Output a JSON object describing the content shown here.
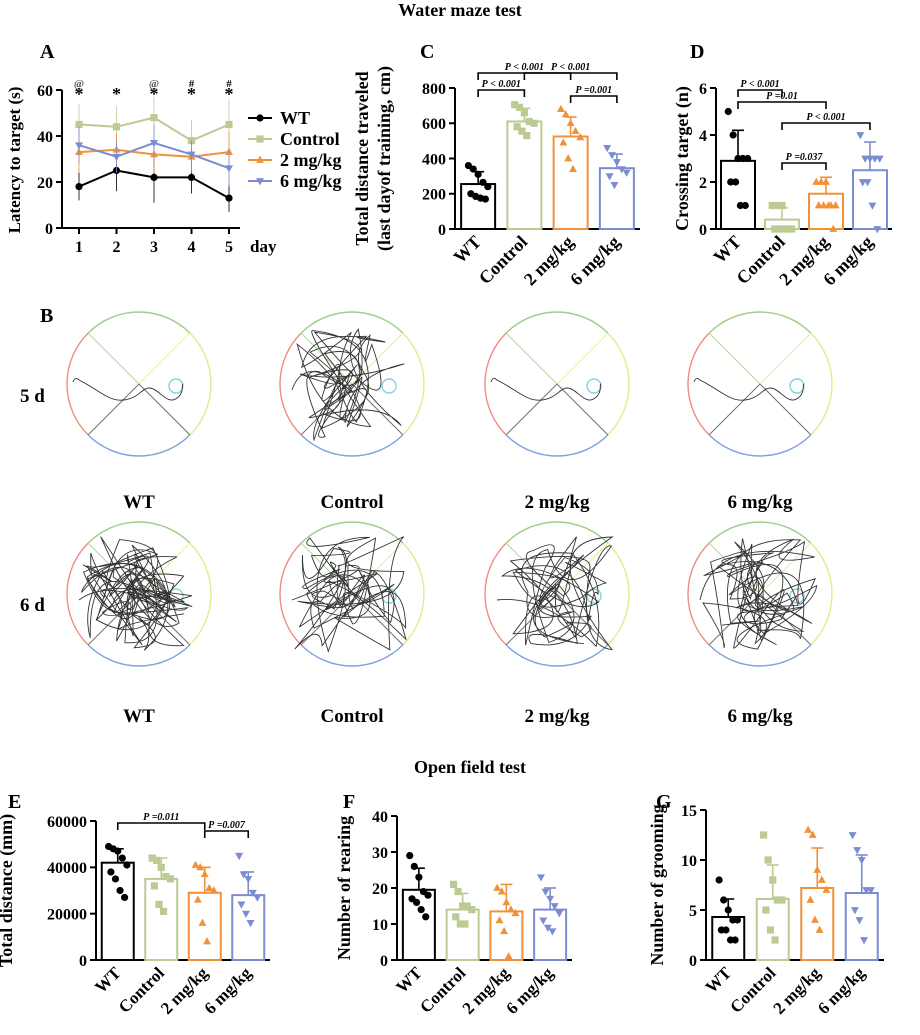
{
  "figure": {
    "water_maze_title": "Water maze test",
    "open_field_title": "Open field test",
    "panel_letters": {
      "A": "A",
      "B": "B",
      "C": "C",
      "D": "D",
      "E": "E",
      "F": "F",
      "G": "G"
    },
    "track_row_labels": [
      "5 d",
      "6 d"
    ],
    "track_group_labels": [
      "WT",
      "Control",
      "2 mg/kg",
      "6 mg/kg"
    ]
  },
  "colors": {
    "WT": "#000000",
    "Control": "#bccb93",
    "mg2": "#f0923a",
    "mg6": "#7b8cd1",
    "quad_red": "#f08b80",
    "quad_green": "#9fce8a",
    "quad_yellow": "#e3ea8a",
    "quad_blue": "#7ea4e0",
    "platform": "#82d3e3"
  },
  "chart_data": [
    {
      "id": "A",
      "type": "line",
      "title": "",
      "xlabel": "day",
      "ylabel": "Latency to target (s)",
      "x": [
        1,
        2,
        3,
        4,
        5
      ],
      "ylim": [
        0,
        60
      ],
      "yticks": [
        0,
        20,
        40,
        60
      ],
      "series": [
        {
          "name": "WT",
          "values": [
            18,
            25,
            22,
            22,
            13
          ],
          "err": [
            6,
            9,
            11,
            7,
            6
          ],
          "marker": "circle"
        },
        {
          "name": "Control",
          "values": [
            45,
            44,
            48,
            38,
            45
          ],
          "err": [
            9,
            9,
            9,
            9,
            11
          ],
          "marker": "square"
        },
        {
          "name": "2 mg/kg",
          "values": [
            33,
            34,
            32,
            31,
            33
          ],
          "err": [
            9,
            7,
            8,
            7,
            9
          ],
          "marker": "triangle-up"
        },
        {
          "name": "6 mg/kg",
          "values": [
            36,
            31,
            37,
            32,
            26
          ],
          "err": [
            8,
            7,
            8,
            6,
            8
          ],
          "marker": "triangle-down"
        }
      ],
      "annotations": [
        {
          "x": 1,
          "marks": [
            "@",
            "*"
          ]
        },
        {
          "x": 2,
          "marks": [
            "*"
          ]
        },
        {
          "x": 3,
          "marks": [
            "@",
            "*"
          ]
        },
        {
          "x": 4,
          "marks": [
            "#",
            "*"
          ]
        },
        {
          "x": 5,
          "marks": [
            "#",
            "*"
          ]
        }
      ]
    },
    {
      "id": "C",
      "type": "bar",
      "ylabel": "Total distance traveled (last dayof training, cm)",
      "ylabel_lines": [
        "Total distance traveled",
        "(last dayof training, cm)"
      ],
      "categories": [
        "WT",
        "Control",
        "2 mg/kg",
        "6 mg/kg"
      ],
      "values": [
        255,
        610,
        525,
        345
      ],
      "err": [
        70,
        75,
        110,
        80
      ],
      "points": [
        [
          360,
          340,
          310,
          265,
          240,
          200,
          185,
          175,
          170
        ],
        [
          705,
          690,
          660,
          610,
          600,
          580,
          555,
          530
        ],
        [
          680,
          650,
          600,
          555,
          520,
          490,
          400,
          340
        ],
        [
          460,
          420,
          380,
          340,
          320,
          300,
          250
        ]
      ],
      "ylim": [
        0,
        800
      ],
      "yticks": [
        0,
        200,
        400,
        600,
        800
      ],
      "brackets": [
        {
          "from": 0,
          "to": 1,
          "label": "P < 0.001"
        },
        {
          "from": 0,
          "to": 2,
          "label": "P < 0.001"
        },
        {
          "from": 1,
          "to": 3,
          "label": "P < 0.001"
        },
        {
          "from": 2,
          "to": 3,
          "label": "P =0.001"
        }
      ]
    },
    {
      "id": "D",
      "type": "bar",
      "ylabel": "Crossing target (n)",
      "categories": [
        "WT",
        "Control",
        "2 mg/kg",
        "6 mg/kg"
      ],
      "values": [
        2.9,
        0.4,
        1.5,
        2.5
      ],
      "err": [
        1.3,
        0.5,
        0.7,
        1.2
      ],
      "points": [
        [
          5,
          4,
          3,
          3,
          3,
          2,
          2,
          1,
          1
        ],
        [
          1,
          1,
          1,
          0,
          0,
          0,
          0,
          0
        ],
        [
          2,
          2,
          2,
          1,
          1,
          1,
          1,
          1,
          0
        ],
        [
          4,
          3,
          3,
          3,
          3,
          2,
          2,
          1,
          0
        ]
      ],
      "ylim": [
        0,
        6
      ],
      "yticks": [
        0,
        2,
        4,
        6
      ],
      "brackets": [
        {
          "from": 0,
          "to": 1,
          "label": "P < 0.001"
        },
        {
          "from": 0,
          "to": 2,
          "label": "P =0.01"
        },
        {
          "from": 1,
          "to": 3,
          "label": "P < 0.001"
        },
        {
          "from": 1,
          "to": 2,
          "label": "P =0.037"
        }
      ]
    },
    {
      "id": "E",
      "type": "bar",
      "ylabel": "Total distance (mm)",
      "categories": [
        "WT",
        "Control",
        "2 mg/kg",
        "6 mg/kg"
      ],
      "values": [
        42000,
        35000,
        29000,
        28000
      ],
      "err": [
        6000,
        9000,
        11000,
        10000
      ],
      "points": [
        [
          49000,
          48000,
          47000,
          44000,
          41000,
          38000,
          35000,
          30000,
          27000
        ],
        [
          44000,
          43000,
          40000,
          36000,
          35000,
          32000,
          24000,
          21000
        ],
        [
          41000,
          40000,
          37000,
          31000,
          30000,
          26000,
          16000,
          8000
        ],
        [
          45000,
          37000,
          35000,
          29000,
          27000,
          24000,
          20000,
          16000
        ]
      ],
      "ylim": [
        0,
        60000
      ],
      "yticks": [
        0,
        20000,
        40000,
        60000
      ],
      "brackets": [
        {
          "from": 0,
          "to": 2,
          "label": "P =0.011"
        },
        {
          "from": 2,
          "to": 3,
          "label": "P =0.007"
        }
      ]
    },
    {
      "id": "F",
      "type": "bar",
      "ylabel": "Number of rearing",
      "categories": [
        "WT",
        "Control",
        "2 mg/kg",
        "6 mg/kg"
      ],
      "values": [
        19.5,
        14,
        13.5,
        14
      ],
      "err": [
        6,
        4.5,
        7.5,
        6
      ],
      "points": [
        [
          29,
          26,
          23,
          19,
          18,
          17,
          16,
          14,
          12
        ],
        [
          21,
          19,
          15,
          15,
          14,
          12,
          10,
          10
        ],
        [
          20,
          19,
          16,
          14,
          13,
          11,
          8,
          1
        ],
        [
          23,
          19,
          17,
          15,
          13,
          11,
          9,
          8
        ]
      ],
      "ylim": [
        0,
        40
      ],
      "yticks": [
        0,
        10,
        20,
        30,
        40
      ]
    },
    {
      "id": "G",
      "type": "bar",
      "ylabel": "Number of grooming",
      "categories": [
        "WT",
        "Control",
        "2 mg/kg",
        "6 mg/kg"
      ],
      "values": [
        4.3,
        6.1,
        7.2,
        6.7
      ],
      "err": [
        1.8,
        3.4,
        4,
        3.8
      ],
      "points": [
        [
          8,
          6,
          5,
          4,
          4,
          3,
          3,
          2,
          2
        ],
        [
          12.5,
          10,
          8,
          6,
          6,
          5,
          3,
          2
        ],
        [
          13,
          12.5,
          9,
          8,
          7,
          6,
          4,
          3
        ],
        [
          12.5,
          11,
          10,
          7,
          7,
          5,
          4,
          2
        ]
      ],
      "ylim": [
        0,
        15
      ],
      "yticks": [
        0,
        5,
        10,
        15
      ]
    }
  ]
}
